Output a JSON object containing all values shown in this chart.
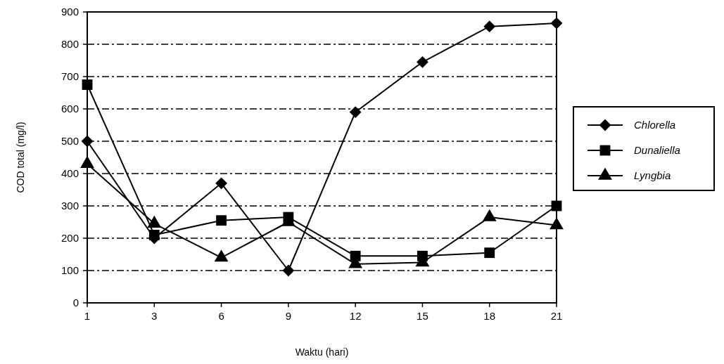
{
  "chart_data": {
    "type": "line",
    "xlabel": "Waktu (hari)",
    "ylabel": "COD total (mg/l)",
    "categories": [
      "1",
      "3",
      "6",
      "9",
      "12",
      "15",
      "18",
      "21"
    ],
    "series": [
      {
        "name": "Chlorella",
        "color": "#000000",
        "marker": "diamond",
        "values": [
          500,
          200,
          370,
          100,
          590,
          745,
          855,
          865
        ]
      },
      {
        "name": "Dunaliella",
        "color": "#000000",
        "marker": "square",
        "values": [
          675,
          210,
          255,
          265,
          145,
          145,
          155,
          300
        ]
      },
      {
        "name": "Lyngbia",
        "color": "#000000",
        "marker": "triangle",
        "values": [
          430,
          245,
          140,
          250,
          120,
          125,
          265,
          240
        ]
      }
    ],
    "ylim": [
      0,
      900
    ],
    "yticks": [
      0,
      100,
      200,
      300,
      400,
      500,
      600,
      700,
      800,
      900
    ],
    "grid": "y",
    "legend": "right",
    "line_style": "solid"
  }
}
